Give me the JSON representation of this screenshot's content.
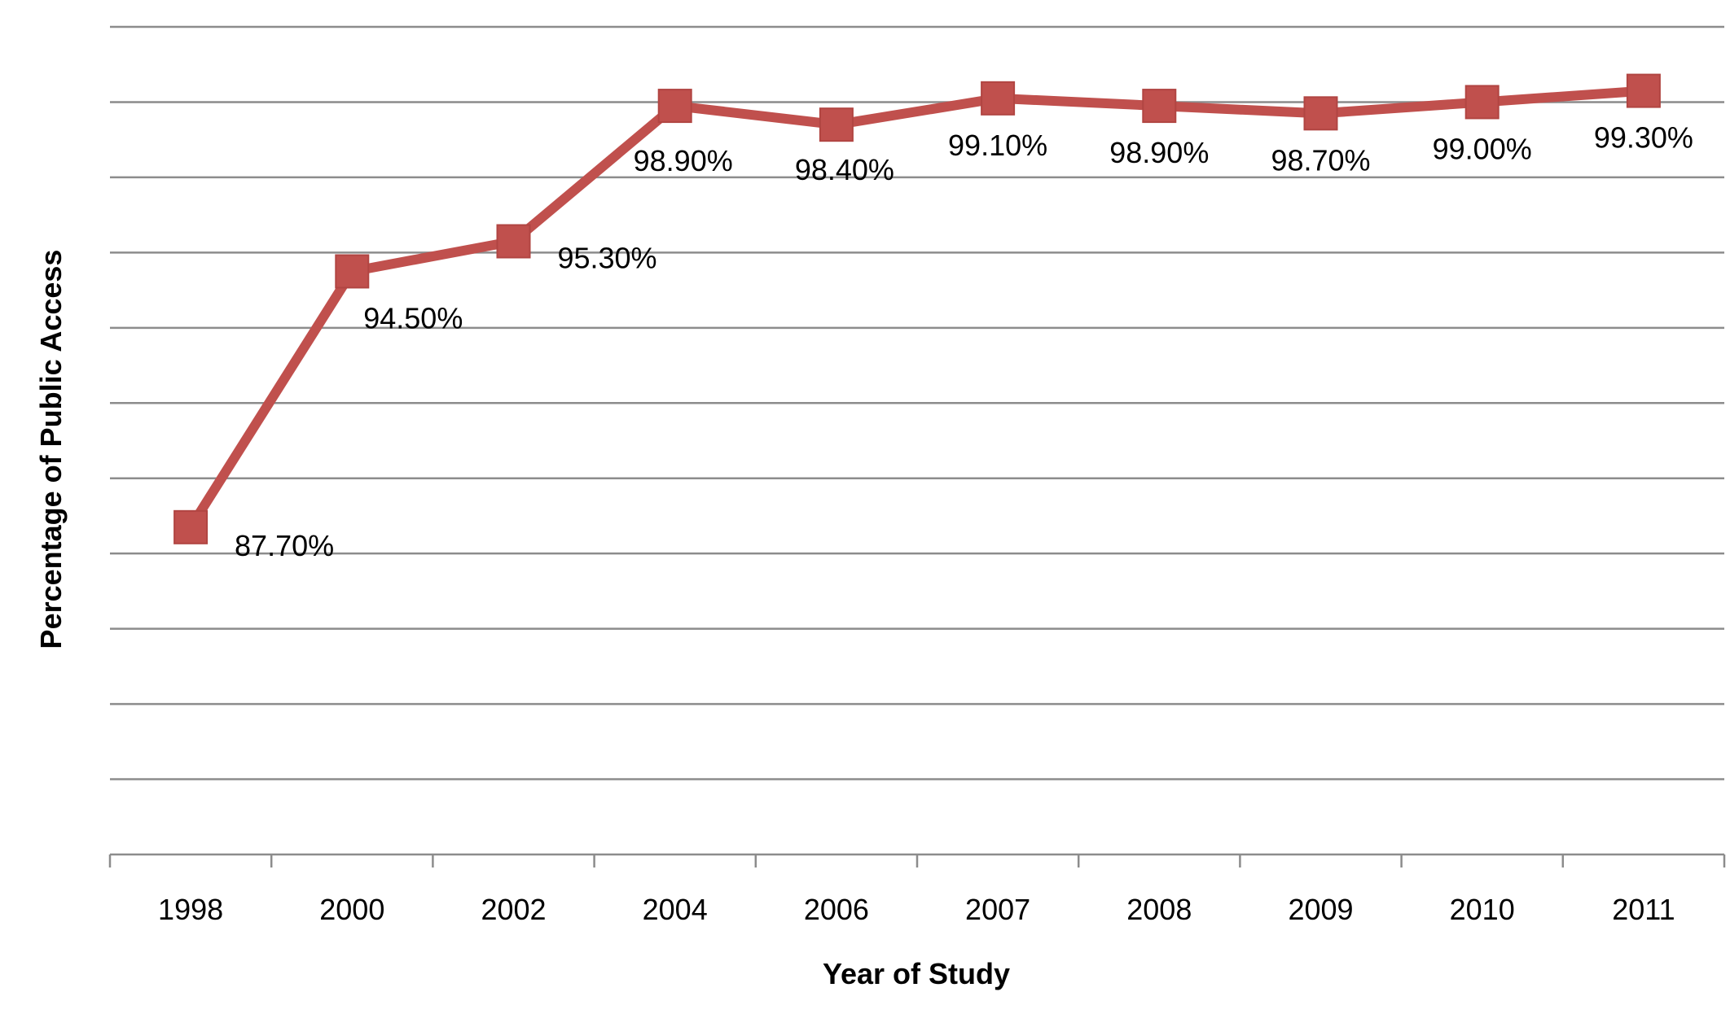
{
  "chart_data": {
    "type": "line",
    "categories": [
      "1998",
      "2000",
      "2002",
      "2004",
      "2006",
      "2007",
      "2008",
      "2009",
      "2010",
      "2011"
    ],
    "series": [
      {
        "values": [
          87.7,
          94.5,
          95.3,
          98.9,
          98.4,
          99.1,
          98.9,
          98.7,
          99.0,
          99.3
        ],
        "labels": [
          "87.70%",
          "94.50%",
          "95.30%",
          "98.90%",
          "98.40%",
          "99.10%",
          "98.90%",
          "98.70%",
          "99.00%",
          "99.30%"
        ],
        "color": "#c0504d",
        "marker": "square"
      }
    ],
    "xlabel": "Year of Study",
    "ylabel": "Percentage of Public Access",
    "ylim": [
      79,
      101
    ],
    "gridline_step": 2,
    "grid": "horizontal",
    "legend": "none",
    "colors": {
      "grid": "#8c8c8c",
      "axis": "#8c8c8c",
      "series": "#c0504d"
    }
  }
}
